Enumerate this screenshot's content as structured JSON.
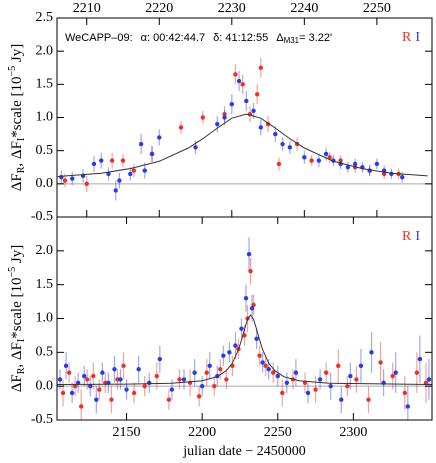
{
  "chart_data": [
    {
      "type": "scatter",
      "annotation": [
        "WeCAPP–09:",
        "α: 00:42:44.7",
        "δ: 41:12:55",
        "Δ",
        "M31",
        "= 3.22'"
      ],
      "ylabel": [
        "ΔF",
        "R",
        ", ΔF",
        "I",
        "*scale [10",
        "−5",
        " Jy]"
      ],
      "xlim": [
        2205.9,
        2257.6
      ],
      "ylim": [
        -0.5,
        2.5
      ],
      "xticks": [
        2210,
        2220,
        2230,
        2240,
        2250
      ],
      "yticks": [
        -0.5,
        {
          "value": 0,
          "label": "0.0"
        },
        0.5,
        {
          "value": 1,
          "label": "1.0"
        },
        1.5,
        {
          "value": 2,
          "label": "2.0"
        },
        2.5
      ],
      "hline": 0,
      "series": [
        {
          "name": "R",
          "color": "#e8322a",
          "x": [
            2207,
            2210,
            2213.5,
            2215,
            2216.5,
            2219,
            2223,
            2226,
            2229,
            2230.5,
            2231.5,
            2232.5,
            2233.5,
            2234,
            2235,
            2236.5,
            2239,
            2241,
            2243.5,
            2245,
            2247,
            2249,
            2251,
            2253
          ],
          "values": [
            0.05,
            0.0,
            0.35,
            0.35,
            0.2,
            0.45,
            0.85,
            1.0,
            1.05,
            1.65,
            1.5,
            1.05,
            1.35,
            1.75,
            0.9,
            0.3,
            0.6,
            0.35,
            0.4,
            0.35,
            0.25,
            0.2,
            0.15,
            0.15
          ],
          "errors": [
            0.1,
            0.12,
            0.12,
            0.1,
            0.1,
            0.12,
            0.1,
            0.1,
            0.12,
            0.15,
            0.15,
            0.12,
            0.15,
            0.15,
            0.12,
            0.1,
            0.1,
            0.08,
            0.08,
            0.08,
            0.08,
            0.08,
            0.08,
            0.08
          ]
        },
        {
          "name": "I",
          "color": "#2b3de0",
          "x": [
            2206.5,
            2208,
            2209.5,
            2211,
            2212,
            2213,
            2214,
            2214.5,
            2216,
            2217.5,
            2218,
            2219,
            2220,
            2225,
            2228,
            2229,
            2230,
            2231,
            2232,
            2233,
            2234,
            2236,
            2237,
            2238,
            2240,
            2242,
            2243,
            2244,
            2245,
            2246,
            2247,
            2248,
            2249,
            2250,
            2251,
            2252,
            2253.5
          ],
          "values": [
            0.1,
            0.08,
            0.12,
            0.3,
            0.35,
            0.15,
            -0.1,
            0.05,
            0.15,
            0.6,
            0.2,
            0.45,
            0.7,
            0.55,
            0.9,
            1.0,
            1.2,
            1.55,
            1.25,
            1.1,
            0.85,
            0.75,
            0.6,
            0.55,
            0.4,
            0.35,
            0.45,
            0.35,
            0.3,
            0.25,
            0.3,
            0.25,
            0.2,
            0.3,
            0.2,
            0.15,
            0.1
          ],
          "errors": [
            0.1,
            0.1,
            0.1,
            0.12,
            0.12,
            0.1,
            0.15,
            0.12,
            0.1,
            0.15,
            0.12,
            0.12,
            0.12,
            0.1,
            0.12,
            0.12,
            0.15,
            0.15,
            0.15,
            0.12,
            0.12,
            0.12,
            0.1,
            0.1,
            0.1,
            0.1,
            0.1,
            0.08,
            0.08,
            0.08,
            0.08,
            0.08,
            0.08,
            0.08,
            0.08,
            0.08,
            0.08
          ]
        }
      ],
      "model": {
        "color": "#333333",
        "x": [
          2206,
          2212,
          2216,
          2220,
          2224,
          2226,
          2228,
          2230,
          2232,
          2234,
          2236,
          2238,
          2240,
          2244,
          2248,
          2252,
          2257
        ],
        "values": [
          0.11,
          0.16,
          0.23,
          0.34,
          0.54,
          0.68,
          0.84,
          0.99,
          1.05,
          0.99,
          0.84,
          0.68,
          0.54,
          0.34,
          0.23,
          0.16,
          0.12
        ]
      }
    },
    {
      "type": "scatter",
      "ylabel": [
        "ΔF",
        "R",
        ", ΔF",
        "I",
        "*scale [10",
        "−5",
        " Jy]"
      ],
      "xlabel": "julian date − 2450000",
      "xlim": [
        2104,
        2352
      ],
      "ylim": [
        -0.5,
        2.5
      ],
      "xticks": [
        2150,
        2200,
        2250,
        2300
      ],
      "yticks": [
        -0.5,
        {
          "value": 0,
          "label": "0.0"
        },
        0.5,
        {
          "value": 1,
          "label": "1.0"
        },
        1.5,
        {
          "value": 2,
          "label": "2.0"
        }
      ],
      "hline": 0,
      "series": [
        {
          "name": "R",
          "color": "#e8322a",
          "x": [
            2108,
            2112,
            2116,
            2120,
            2124,
            2128,
            2132,
            2136,
            2140,
            2144,
            2148,
            2155,
            2162,
            2170,
            2178,
            2185,
            2192,
            2198,
            2203,
            2208,
            2212,
            2216,
            2220,
            2224,
            2228,
            2230,
            2232,
            2234,
            2238,
            2242,
            2247,
            2253,
            2260,
            2268,
            2275,
            2282,
            2290,
            2296,
            2302,
            2310,
            2318,
            2326,
            2334,
            2342,
            2348
          ],
          "values": [
            -0.1,
            0.2,
            0.0,
            -0.3,
            0.1,
            0.15,
            -0.05,
            0.05,
            -0.2,
            0.1,
            0.3,
            -0.1,
            0.0,
            0.15,
            -0.2,
            0.1,
            0.05,
            -0.15,
            0.2,
            0.0,
            0.25,
            0.1,
            0.3,
            0.55,
            0.75,
            1.0,
            1.7,
            1.2,
            0.45,
            0.3,
            0.2,
            -0.1,
            0.1,
            0.05,
            -0.05,
            0.2,
            0.3,
            0.0,
            0.1,
            -0.2,
            0.35,
            0.15,
            -0.1,
            0.2,
            0.05
          ],
          "errors": [
            0.2,
            0.15,
            0.15,
            0.25,
            0.15,
            0.2,
            0.15,
            0.15,
            0.2,
            0.15,
            0.2,
            0.15,
            0.15,
            0.2,
            0.15,
            0.15,
            0.2,
            0.15,
            0.2,
            0.15,
            0.15,
            0.15,
            0.15,
            0.15,
            0.15,
            0.2,
            0.2,
            0.15,
            0.15,
            0.15,
            0.15,
            0.2,
            0.15,
            0.15,
            0.2,
            0.15,
            0.25,
            0.15,
            0.2,
            0.2,
            0.3,
            0.2,
            0.25,
            0.3,
            0.3
          ]
        },
        {
          "name": "I",
          "color": "#2b3de0",
          "x": [
            2106,
            2110,
            2114,
            2118,
            2122,
            2126,
            2130,
            2134,
            2138,
            2142,
            2146,
            2150,
            2158,
            2165,
            2172,
            2180,
            2188,
            2195,
            2200,
            2205,
            2210,
            2214,
            2218,
            2222,
            2226,
            2229,
            2231,
            2233,
            2236,
            2240,
            2244,
            2250,
            2256,
            2262,
            2270,
            2278,
            2285,
            2292,
            2298,
            2305,
            2312,
            2320,
            2328,
            2336,
            2344,
            2350
          ],
          "values": [
            0.1,
            0.3,
            -0.1,
            0.05,
            0.15,
            0.0,
            -0.2,
            0.2,
            0.05,
            0.25,
            0.1,
            -0.05,
            0.25,
            0.05,
            0.4,
            -0.05,
            0.1,
            0.2,
            0.0,
            0.3,
            0.15,
            0.45,
            0.5,
            0.6,
            0.85,
            1.3,
            1.95,
            1.15,
            0.7,
            0.35,
            0.25,
            0.15,
            0.05,
            0.2,
            -0.1,
            0.1,
            0.0,
            -0.2,
            0.15,
            0.3,
            0.5,
            0.05,
            0.2,
            -0.3,
            0.4,
            0.1
          ],
          "errors": [
            0.15,
            0.2,
            0.15,
            0.15,
            0.15,
            0.15,
            0.2,
            0.15,
            0.15,
            0.2,
            0.15,
            0.15,
            0.2,
            0.15,
            0.2,
            0.15,
            0.15,
            0.2,
            0.15,
            0.2,
            0.15,
            0.15,
            0.15,
            0.2,
            0.15,
            0.2,
            0.25,
            0.2,
            0.15,
            0.15,
            0.15,
            0.15,
            0.15,
            0.2,
            0.15,
            0.15,
            0.2,
            0.2,
            0.2,
            0.25,
            0.3,
            0.2,
            0.3,
            0.3,
            0.35,
            0.3
          ]
        }
      ],
      "model": {
        "color": "#333333",
        "x": [
          2104,
          2150,
          2180,
          2200,
          2210,
          2216,
          2220,
          2224,
          2226,
          2228,
          2230,
          2232,
          2234,
          2236,
          2238,
          2240,
          2244,
          2248,
          2254,
          2264,
          2284,
          2352
        ],
        "values": [
          0.024,
          0.03,
          0.044,
          0.08,
          0.14,
          0.23,
          0.34,
          0.54,
          0.68,
          0.84,
          0.99,
          1.05,
          0.99,
          0.84,
          0.68,
          0.54,
          0.34,
          0.23,
          0.14,
          0.08,
          0.044,
          0.025
        ]
      }
    }
  ]
}
